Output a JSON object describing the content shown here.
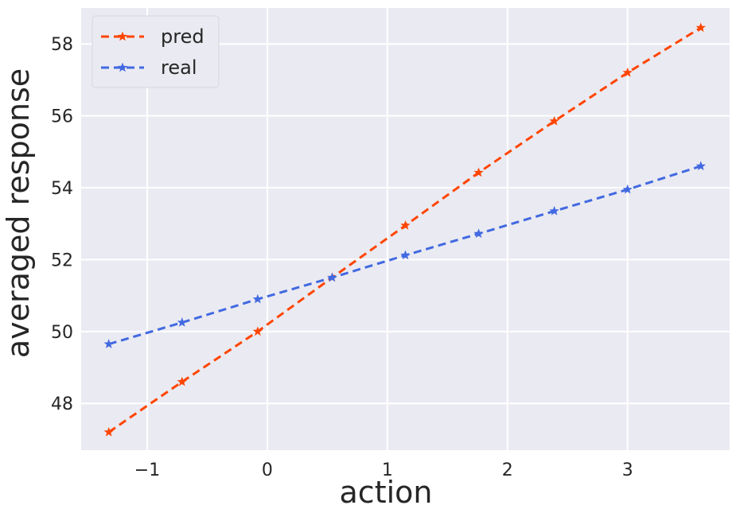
{
  "chart_data": {
    "type": "line",
    "xlabel": "action",
    "ylabel": "averaged response",
    "xlim": [
      -1.55,
      3.85
    ],
    "ylim": [
      46.7,
      59.0
    ],
    "xticks": [
      -1,
      0,
      1,
      2,
      3
    ],
    "xtick_labels": [
      "−1",
      "0",
      "1",
      "2",
      "3"
    ],
    "yticks": [
      48,
      50,
      52,
      54,
      56,
      58
    ],
    "ytick_labels": [
      "48",
      "50",
      "52",
      "54",
      "56",
      "58"
    ],
    "grid": true,
    "legend_position": "top-left",
    "series": [
      {
        "name": "pred",
        "color": "#FF4500",
        "line_style": "dashed",
        "marker": "star",
        "x": [
          -1.32,
          -0.71,
          -0.08,
          0.54,
          1.15,
          1.76,
          2.39,
          3.0,
          3.61
        ],
        "y": [
          47.2,
          48.6,
          50.0,
          51.5,
          52.95,
          54.42,
          55.85,
          57.2,
          58.45
        ]
      },
      {
        "name": "real",
        "color": "#4169E1",
        "line_style": "dashed",
        "marker": "star",
        "x": [
          -1.32,
          -0.71,
          -0.08,
          0.54,
          1.15,
          1.76,
          2.39,
          3.0,
          3.61
        ],
        "y": [
          49.65,
          50.25,
          50.9,
          51.5,
          52.12,
          52.72,
          53.35,
          53.95,
          54.6
        ]
      }
    ]
  }
}
